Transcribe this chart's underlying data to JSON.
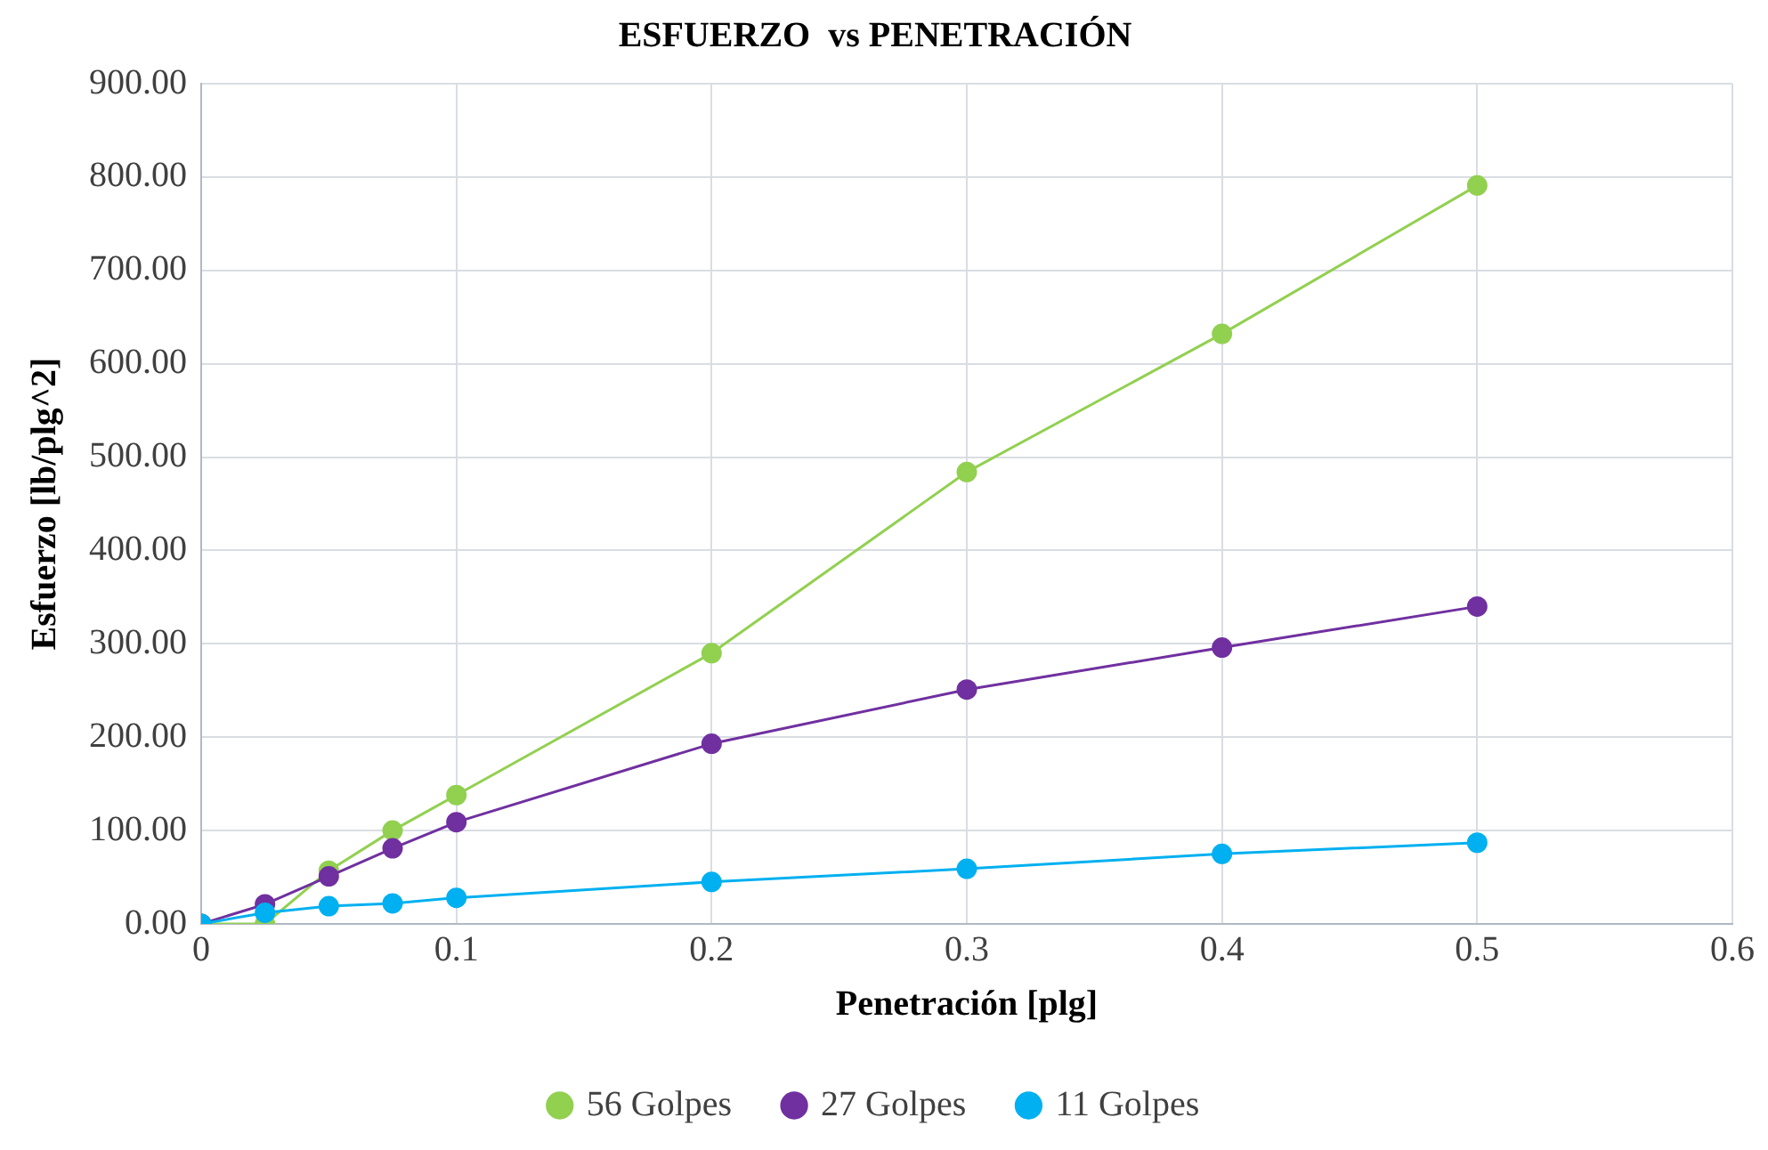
{
  "chart_data": {
    "type": "line",
    "title": "ESFUERZO  vs PENETRACIÓN",
    "xlabel": "Penetración [plg]",
    "ylabel": "Esfuerzo [lb/plg^2]",
    "x": [
      0,
      0.025,
      0.05,
      0.075,
      0.1,
      0.2,
      0.3,
      0.4,
      0.5
    ],
    "series": [
      {
        "name": "56 Golpes",
        "color": "#92d050",
        "values": [
          0,
          0,
          57,
          100,
          138,
          290,
          484,
          632,
          791
        ]
      },
      {
        "name": "27 Golpes",
        "color": "#7030a0",
        "values": [
          0,
          21,
          51,
          81,
          109,
          193,
          251,
          296,
          340
        ]
      },
      {
        "name": "11 Golpes",
        "color": "#00b0f0",
        "values": [
          0,
          12,
          19,
          22,
          28,
          45,
          59,
          75,
          87
        ]
      }
    ],
    "xlim": [
      0,
      0.6
    ],
    "xticks": [
      0,
      0.1,
      0.2,
      0.3,
      0.4,
      0.5,
      0.6
    ],
    "ylim": [
      0,
      900
    ],
    "yticks": [
      {
        "value": 0,
        "label": "0.00"
      },
      {
        "value": 100,
        "label": "100.00"
      },
      {
        "value": 200,
        "label": "200.00"
      },
      {
        "value": 300,
        "label": "300.00"
      },
      {
        "value": 400,
        "label": "400.00"
      },
      {
        "value": 500,
        "label": "500.00"
      },
      {
        "value": 600,
        "label": "600.00"
      },
      {
        "value": 700,
        "label": "700.00"
      },
      {
        "value": 800,
        "label": "800.00"
      },
      {
        "value": 900,
        "label": "900.00"
      }
    ],
    "grid": true,
    "legend": "bottom",
    "marker": "circle",
    "line_style": "solid"
  }
}
